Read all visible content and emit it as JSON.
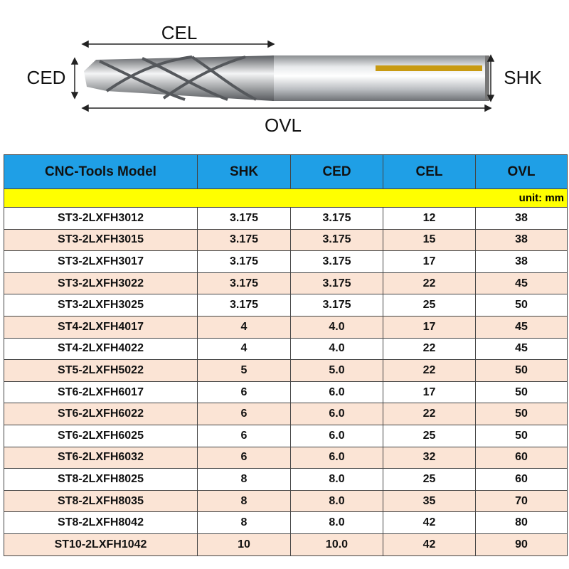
{
  "diagram": {
    "labels": {
      "cel": "CEL",
      "ced": "CED",
      "shk": "SHK",
      "ovl": "OVL"
    }
  },
  "table": {
    "header": [
      "CNC-Tools Model",
      "SHK",
      "CED",
      "CEL",
      "OVL"
    ],
    "unit": "unit: mm",
    "rows": [
      [
        "ST3-2LXFH3012",
        "3.175",
        "3.175",
        "12",
        "38"
      ],
      [
        "ST3-2LXFH3015",
        "3.175",
        "3.175",
        "15",
        "38"
      ],
      [
        "ST3-2LXFH3017",
        "3.175",
        "3.175",
        "17",
        "38"
      ],
      [
        "ST3-2LXFH3022",
        "3.175",
        "3.175",
        "22",
        "45"
      ],
      [
        "ST3-2LXFH3025",
        "3.175",
        "3.175",
        "25",
        "50"
      ],
      [
        "ST4-2LXFH4017",
        "4",
        "4.0",
        "17",
        "45"
      ],
      [
        "ST4-2LXFH4022",
        "4",
        "4.0",
        "22",
        "45"
      ],
      [
        "ST5-2LXFH5022",
        "5",
        "5.0",
        "22",
        "50"
      ],
      [
        "ST6-2LXFH6017",
        "6",
        "6.0",
        "17",
        "50"
      ],
      [
        "ST6-2LXFH6022",
        "6",
        "6.0",
        "22",
        "50"
      ],
      [
        "ST6-2LXFH6025",
        "6",
        "6.0",
        "25",
        "50"
      ],
      [
        "ST6-2LXFH6032",
        "6",
        "6.0",
        "32",
        "60"
      ],
      [
        "ST8-2LXFH8025",
        "8",
        "8.0",
        "25",
        "60"
      ],
      [
        "ST8-2LXFH8035",
        "8",
        "8.0",
        "35",
        "70"
      ],
      [
        "ST8-2LXFH8042",
        "8",
        "8.0",
        "42",
        "80"
      ],
      [
        "ST10-2LXFH1042",
        "10",
        "10.0",
        "42",
        "90"
      ]
    ]
  }
}
